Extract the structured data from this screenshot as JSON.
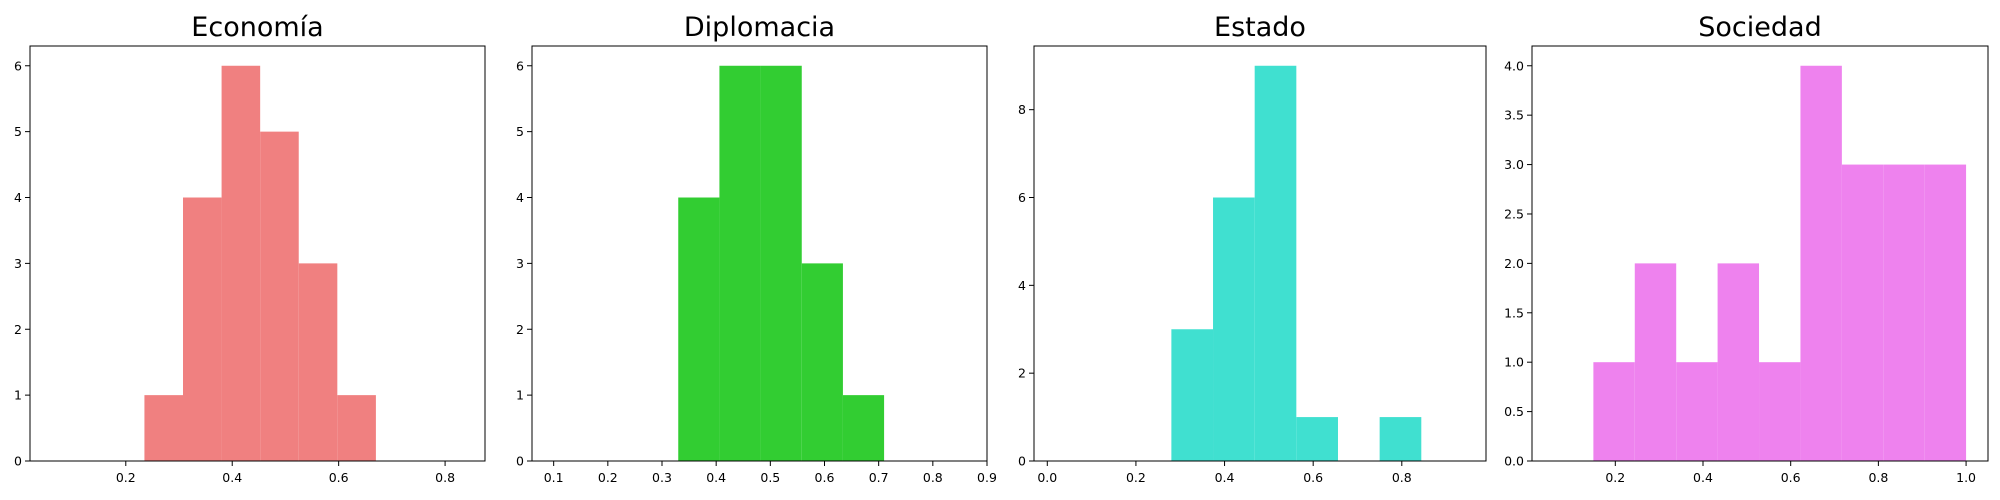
{
  "chart_data": [
    {
      "type": "bar",
      "title": "Economía",
      "color": "#f08080",
      "bins": [
        {
          "x0": 0.235,
          "x1": 0.3075,
          "count": 1
        },
        {
          "x0": 0.3075,
          "x1": 0.38,
          "count": 4
        },
        {
          "x0": 0.38,
          "x1": 0.4525,
          "count": 6
        },
        {
          "x0": 0.4525,
          "x1": 0.525,
          "count": 5
        },
        {
          "x0": 0.525,
          "x1": 0.5975,
          "count": 3
        },
        {
          "x0": 0.5975,
          "x1": 0.67,
          "count": 1
        }
      ],
      "xlim": [
        0.02,
        0.875
      ],
      "ylim": [
        0,
        6.3
      ],
      "xticks": [
        0.2,
        0.4,
        0.6,
        0.8
      ],
      "xtick_labels": [
        "0.2",
        "0.4",
        "0.6",
        "0.8"
      ],
      "yticks": [
        0,
        1,
        2,
        3,
        4,
        5,
        6
      ],
      "ytick_labels": [
        "0",
        "1",
        "2",
        "3",
        "4",
        "5",
        "6"
      ]
    },
    {
      "type": "bar",
      "title": "Diplomacia",
      "color": "#32cd32",
      "bins": [
        {
          "x0": 0.33,
          "x1": 0.406,
          "count": 4
        },
        {
          "x0": 0.406,
          "x1": 0.482,
          "count": 6
        },
        {
          "x0": 0.482,
          "x1": 0.558,
          "count": 6
        },
        {
          "x0": 0.558,
          "x1": 0.634,
          "count": 3
        },
        {
          "x0": 0.634,
          "x1": 0.71,
          "count": 1
        }
      ],
      "xlim": [
        0.06,
        0.9
      ],
      "ylim": [
        0,
        6.3
      ],
      "xticks": [
        0.1,
        0.2,
        0.3,
        0.4,
        0.5,
        0.6,
        0.7,
        0.8,
        0.9
      ],
      "xtick_labels": [
        "0.1",
        "0.2",
        "0.3",
        "0.4",
        "0.5",
        "0.6",
        "0.7",
        "0.8",
        "0.9"
      ],
      "yticks": [
        0,
        1,
        2,
        3,
        4,
        5,
        6
      ],
      "ytick_labels": [
        "0",
        "1",
        "2",
        "3",
        "4",
        "5",
        "6"
      ]
    },
    {
      "type": "bar",
      "title": "Estado",
      "color": "#40e0d0",
      "bins": [
        {
          "x0": 0.28,
          "x1": 0.374,
          "count": 3
        },
        {
          "x0": 0.374,
          "x1": 0.468,
          "count": 6
        },
        {
          "x0": 0.468,
          "x1": 0.562,
          "count": 9
        },
        {
          "x0": 0.562,
          "x1": 0.656,
          "count": 1
        },
        {
          "x0": 0.656,
          "x1": 0.75,
          "count": 0
        },
        {
          "x0": 0.75,
          "x1": 0.844,
          "count": 1
        }
      ],
      "xlim": [
        -0.03,
        0.99
      ],
      "ylim": [
        0,
        9.45
      ],
      "xticks": [
        0.0,
        0.2,
        0.4,
        0.6,
        0.8
      ],
      "xtick_labels": [
        "0.0",
        "0.2",
        "0.4",
        "0.6",
        "0.8"
      ],
      "yticks": [
        0,
        2,
        4,
        6,
        8
      ],
      "ytick_labels": [
        "0",
        "2",
        "4",
        "6",
        "8"
      ]
    },
    {
      "type": "bar",
      "title": "Sociedad",
      "color": "#ee82ee",
      "bins": [
        {
          "x0": 0.15,
          "x1": 0.2444,
          "count": 1
        },
        {
          "x0": 0.2444,
          "x1": 0.3389,
          "count": 2
        },
        {
          "x0": 0.3389,
          "x1": 0.4333,
          "count": 1
        },
        {
          "x0": 0.4333,
          "x1": 0.5278,
          "count": 2
        },
        {
          "x0": 0.5278,
          "x1": 0.6222,
          "count": 1
        },
        {
          "x0": 0.6222,
          "x1": 0.7167,
          "count": 4
        },
        {
          "x0": 0.7167,
          "x1": 0.8111,
          "count": 3
        },
        {
          "x0": 0.8111,
          "x1": 0.9056,
          "count": 3
        },
        {
          "x0": 0.9056,
          "x1": 1.0,
          "count": 3
        }
      ],
      "xlim": [
        0.01,
        1.05
      ],
      "ylim": [
        0,
        4.2
      ],
      "xticks": [
        0.2,
        0.4,
        0.6,
        0.8,
        1.0
      ],
      "xtick_labels": [
        "0.2",
        "0.4",
        "0.6",
        "0.8",
        "1.0"
      ],
      "yticks": [
        0,
        0.5,
        1.0,
        1.5,
        2.0,
        2.5,
        3.0,
        3.5,
        4.0
      ],
      "ytick_labels": [
        "0.0",
        "0.5",
        "1.0",
        "1.5",
        "2.0",
        "2.5",
        "3.0",
        "3.5",
        "4.0"
      ]
    }
  ]
}
